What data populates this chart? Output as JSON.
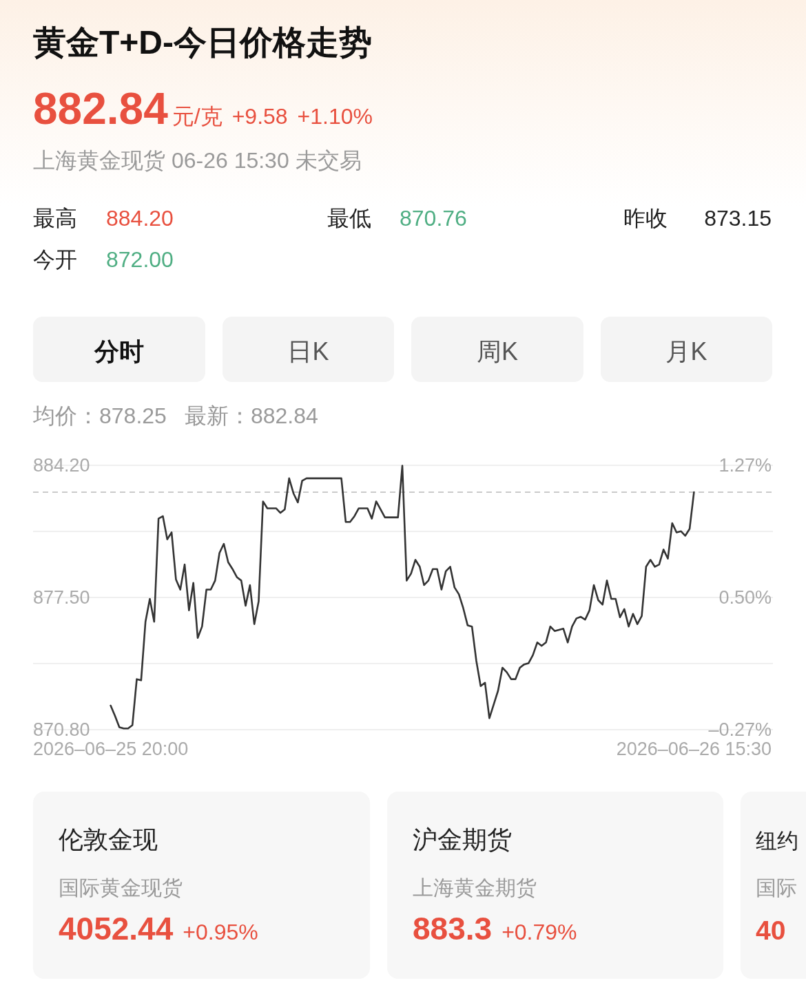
{
  "chart_data": {
    "type": "line",
    "title": "黄金T+D-今日价格走势",
    "annotations": [
      "882.84",
      "元/克",
      "+9.58",
      "+1.10%",
      "上海黄金现货 06-26 15:30 未交易",
      "最高",
      "884.20",
      "最低",
      "870.76",
      "昨收",
      "873.15",
      "今开",
      "872.00",
      "分时",
      "日K",
      "周K",
      "月K",
      "均价：878.25",
      "最新：882.84",
      "伦敦金现",
      "国际黄金现货",
      "4052.44",
      "+0.95%",
      "沪金期货",
      "上海黄金期货",
      "883.3",
      "+0.79%",
      "纽约",
      "国际",
      "40"
    ],
    "categories": [
      "2026–06–25 20:00",
      null,
      null,
      null,
      null,
      null,
      null,
      null,
      null,
      null,
      null,
      null,
      null,
      null,
      null,
      null,
      null,
      null,
      null,
      null,
      null,
      null,
      null,
      null,
      null,
      null,
      null,
      null,
      null,
      null,
      null,
      null,
      null,
      null,
      null,
      null,
      null,
      null,
      null,
      null,
      null,
      null,
      null,
      null,
      null,
      null,
      null,
      null,
      null,
      null,
      null,
      null,
      null,
      null,
      null,
      null,
      null,
      null,
      null,
      null,
      null,
      null,
      null,
      null,
      null,
      null,
      null,
      null,
      null,
      null,
      null,
      null,
      null,
      null,
      null,
      null,
      null,
      null,
      null,
      null,
      null,
      null,
      null,
      null,
      null,
      null,
      null,
      null,
      null,
      null,
      null,
      null,
      null,
      null,
      null,
      null,
      null,
      null,
      null,
      null,
      null,
      null,
      null,
      null,
      null,
      null,
      null,
      null,
      null,
      null,
      null,
      null,
      null,
      null,
      null,
      null,
      null,
      null,
      null,
      null,
      null,
      null,
      null,
      null,
      null,
      null,
      null,
      null,
      null,
      null,
      null,
      null,
      null,
      null,
      "2026–06–26 15:30"
    ],
    "series": [
      {
        "color": "#333333",
        "values": [
          872.02,
          871.5,
          870.92,
          870.86,
          870.86,
          871.03,
          873.36,
          873.3,
          876.27,
          877.43,
          876.27,
          881.5,
          881.62,
          880.45,
          880.8,
          878.42,
          877.9,
          879.17,
          876.85,
          878.24,
          875.45,
          876.03,
          877.9,
          877.9,
          878.36,
          879.76,
          880.22,
          879.29,
          878.94,
          878.53,
          878.36,
          877.08,
          878.13,
          876.15,
          877.31,
          882.37,
          882.02,
          882.02,
          882.02,
          881.79,
          881.97,
          883.54,
          882.78,
          882.32,
          883.42,
          883.54,
          883.54,
          883.54,
          883.54,
          883.54,
          883.54,
          883.54,
          883.54,
          883.54,
          881.33,
          881.33,
          881.62,
          882.02,
          882.02,
          882.02,
          881.5,
          882.37,
          881.97,
          881.56,
          881.56,
          881.56,
          881.56,
          884.18,
          878.36,
          878.71,
          879.41,
          879.06,
          878.13,
          878.36,
          878.94,
          878.94,
          877.9,
          878.83,
          879.06,
          878.01,
          877.66,
          876.96,
          876.09,
          876.03,
          874.29,
          873.01,
          873.18,
          871.38,
          872.08,
          872.78,
          873.94,
          873.71,
          873.36,
          873.36,
          873.94,
          874.11,
          874.17,
          874.58,
          875.22,
          875.05,
          875.22,
          876.03,
          875.8,
          875.86,
          875.92,
          875.22,
          876.03,
          876.44,
          876.52,
          876.38,
          876.85,
          878.13,
          877.37,
          877.14,
          878.36,
          877.43,
          877.43,
          876.5,
          876.91,
          876.03,
          876.67,
          876.15,
          876.56,
          879.06,
          879.41,
          879.06,
          879.17,
          879.93,
          879.47,
          881.27,
          880.8,
          880.86,
          880.63,
          880.98,
          882.84
        ]
      }
    ],
    "ylim": [
      870.8,
      884.2
    ],
    "yticks": [
      {
        "value": 884.2,
        "label": "884.20"
      },
      {
        "value": 880.85,
        "label": null
      },
      {
        "value": 877.5,
        "label": "877.50"
      },
      {
        "value": 874.15,
        "label": null
      },
      {
        "value": 870.8,
        "label": "870.80"
      }
    ],
    "y2lim": [
      -0.27,
      1.27
    ],
    "y2ticks": [
      {
        "value": 1.27,
        "label": "1.27%"
      },
      {
        "value": 0.5,
        "label": "0.50%"
      },
      {
        "value": -0.27,
        "label": "–0.27%"
      }
    ],
    "ref_lines": [
      {
        "axis": "y",
        "value": 882.84,
        "label": null,
        "color": "#bbbbbb",
        "line_style": "dashed"
      }
    ],
    "grid": "y"
  }
}
